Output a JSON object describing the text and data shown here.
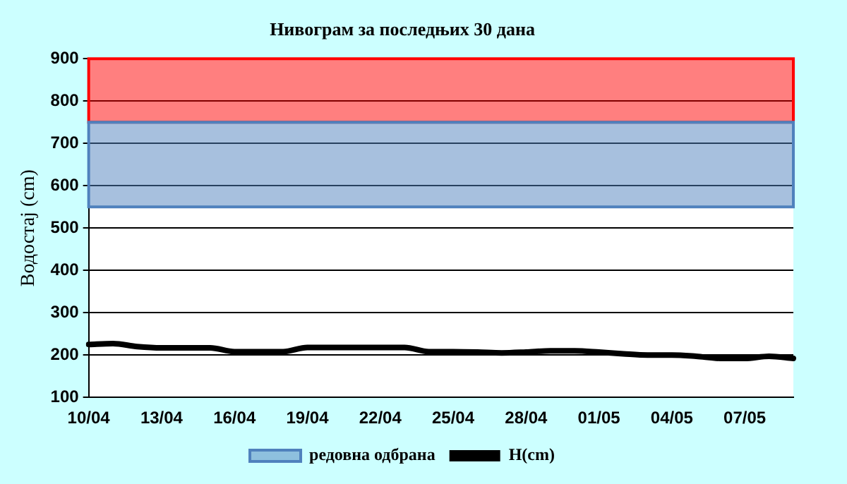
{
  "chart_data": {
    "type": "line",
    "title": "Нивограм за последњих 30 дана",
    "ylabel": "Водостај (cm)",
    "categories": [
      "10/04",
      null,
      null,
      "13/04",
      null,
      null,
      "16/04",
      null,
      null,
      "19/04",
      null,
      null,
      "22/04",
      null,
      null,
      "25/04",
      null,
      null,
      "28/04",
      null,
      null,
      "01/05",
      null,
      null,
      "04/05",
      null,
      null,
      "07/05",
      null,
      null
    ],
    "series": [
      {
        "name": "H(cm)",
        "color": "#000000",
        "values": [
          225,
          227,
          220,
          217,
          217,
          217,
          208,
          208,
          208,
          218,
          218,
          218,
          218,
          218,
          208,
          208,
          207,
          205,
          207,
          210,
          210,
          207,
          203,
          200,
          200,
          197,
          192,
          192,
          197,
          192
        ]
      }
    ],
    "ylim": [
      100,
      900
    ],
    "yticks": [
      100,
      200,
      300,
      400,
      500,
      600,
      700,
      800,
      900
    ],
    "bands": [
      {
        "axis": "y",
        "from": 750,
        "to": 900,
        "label": null,
        "color": "#ff0000"
      },
      {
        "axis": "y",
        "from": 550,
        "to": 750,
        "label": "редовна одбрана",
        "color": "#4f81bd"
      }
    ],
    "grid": "y",
    "legend": "bottom",
    "marker": "none",
    "line_style": "solid"
  }
}
